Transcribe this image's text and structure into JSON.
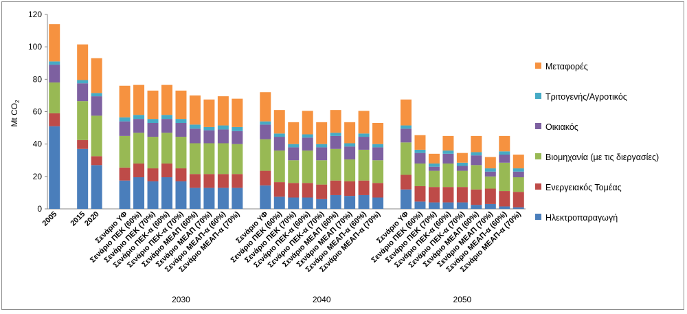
{
  "chart_data": {
    "type": "bar",
    "stacked": true,
    "ylabel_main": "Mt CO",
    "ylabel_sub": "2",
    "ylim": [
      0,
      120
    ],
    "yticks": [
      0,
      20,
      40,
      60,
      80,
      100,
      120
    ],
    "grid": false,
    "legend_position": "right",
    "categories": [
      "2005",
      "2015",
      "2020",
      "Σενάριο ΥΦ",
      "Σενάριο ΠΕΚ (60%)",
      "Σενάριο ΠΕΚ (70%)",
      "Σενάριο ΠΕΚ-α (60%)",
      "Σενάριο ΠΕΚ-α (70%)",
      "Σενάριο ΜΕΑΠ (60%)",
      "Σενάριο ΜΕΑΠ (70%)",
      "Σενάριο ΜΕΑΠ-α (60%)",
      "Σενάριο ΜΕΑΠ-α (70%)",
      "Σενάριο ΥΦ",
      "Σενάριο ΠΕΚ (60%)",
      "Σενάριο ΠΕΚ (70%)",
      "Σενάριο ΠΕΚ-α (60%)",
      "Σενάριο ΠΕΚ-α (70%)",
      "Σενάριο ΜΕΑΠ (60%)",
      "Σενάριο ΜΕΑΠ (70%)",
      "Σενάριο ΜΕΑΠ-α (60%)",
      "Σενάριο ΜΕΑΠ-α (70%)",
      "Σενάριο ΥΦ",
      "Σενάριο ΠΕΚ (60%)",
      "Σενάριο ΠΕΚ (70%)",
      "Σενάριο ΠΕΚ-α (60%)",
      "Σενάριο ΠΕΚ-α (70%)",
      "Σενάριο ΜΕΑΠ (60%)",
      "Σενάριο ΜΕΑΠ (70%)",
      "Σενάριο ΜΕΑΠ-α (60%)",
      "Σενάριο ΜΕΑΠ-α (70%)"
    ],
    "slot_index": [
      0,
      2,
      3,
      5,
      6,
      7,
      8,
      9,
      10,
      11,
      12,
      13,
      15,
      16,
      17,
      18,
      19,
      20,
      21,
      22,
      23,
      25,
      26,
      27,
      28,
      29,
      30,
      31,
      32,
      33
    ],
    "group_labels": [
      {
        "label": "2030",
        "from": 3,
        "to": 11
      },
      {
        "label": "2040",
        "from": 12,
        "to": 20
      },
      {
        "label": "2050",
        "from": 21,
        "to": 29
      }
    ],
    "series": [
      {
        "name": "Ηλεκτροπαραγωγή",
        "color": "#4a7ebb",
        "values": [
          51,
          37,
          27,
          17.5,
          19.5,
          17,
          19.5,
          17,
          13,
          13,
          13,
          13,
          14.5,
          7.5,
          7,
          7,
          6,
          8.5,
          8,
          8.5,
          7,
          12,
          4.5,
          4,
          4,
          4,
          2.5,
          3,
          1.5,
          1
        ]
      },
      {
        "name": "Ενεργειακός Τομέας",
        "color": "#be4b48",
        "values": [
          8,
          5.5,
          5.5,
          8,
          8.5,
          8,
          8.5,
          8,
          8.5,
          8.5,
          8.5,
          8.5,
          9,
          9,
          9,
          9,
          9,
          9,
          9,
          9,
          9,
          9,
          9.5,
          9.5,
          9.5,
          9.5,
          9.5,
          9.5,
          9.5,
          9.5
        ]
      },
      {
        "name": "Βιομηχανία (με τις διεργασίες)",
        "color": "#98b954",
        "values": [
          19,
          24,
          25,
          19.5,
          19,
          19.5,
          19,
          19.5,
          19,
          19,
          19,
          18.5,
          19.5,
          19.5,
          14,
          20,
          15,
          19.5,
          13.5,
          19,
          14,
          20,
          14,
          10,
          14.5,
          10,
          15,
          7.5,
          17.5,
          9
        ]
      },
      {
        "name": "Οικιακός",
        "color": "#7d60a0",
        "values": [
          11,
          11,
          12,
          9,
          8.5,
          8.5,
          8.5,
          8.5,
          9,
          8,
          8.5,
          8,
          9,
          8.5,
          8,
          8,
          8,
          8,
          8,
          8,
          8,
          8.5,
          6.5,
          2.5,
          6,
          3,
          6,
          3,
          5,
          3.5
        ]
      },
      {
        "name": "Τριτογενής/Αγροτικός",
        "color": "#46aac5",
        "values": [
          2,
          2,
          2,
          2.5,
          2.5,
          2.5,
          2.5,
          2.5,
          2.5,
          2,
          2.5,
          2.5,
          2,
          2,
          2,
          2,
          2,
          2,
          2,
          2,
          2,
          2,
          2,
          2,
          2,
          2,
          2,
          2,
          2,
          2
        ]
      },
      {
        "name": "Μεταφορές",
        "color": "#f69240",
        "values": [
          23,
          22,
          21.5,
          19.5,
          18.5,
          17.5,
          18.5,
          17.5,
          18,
          17,
          18,
          17.5,
          18,
          14.5,
          13.5,
          14.5,
          13.5,
          14,
          13,
          14,
          13,
          16,
          9,
          6,
          9,
          6,
          10,
          7,
          9.5,
          8.5
        ]
      }
    ],
    "legend_order": [
      "Μεταφορές",
      "Τριτογενής/Αγροτικός",
      "Οικιακός",
      "Βιομηχανία (με τις διεργασίες)",
      "Ενεργειακός Τομέας",
      "Ηλεκτροπαραγωγή"
    ]
  }
}
